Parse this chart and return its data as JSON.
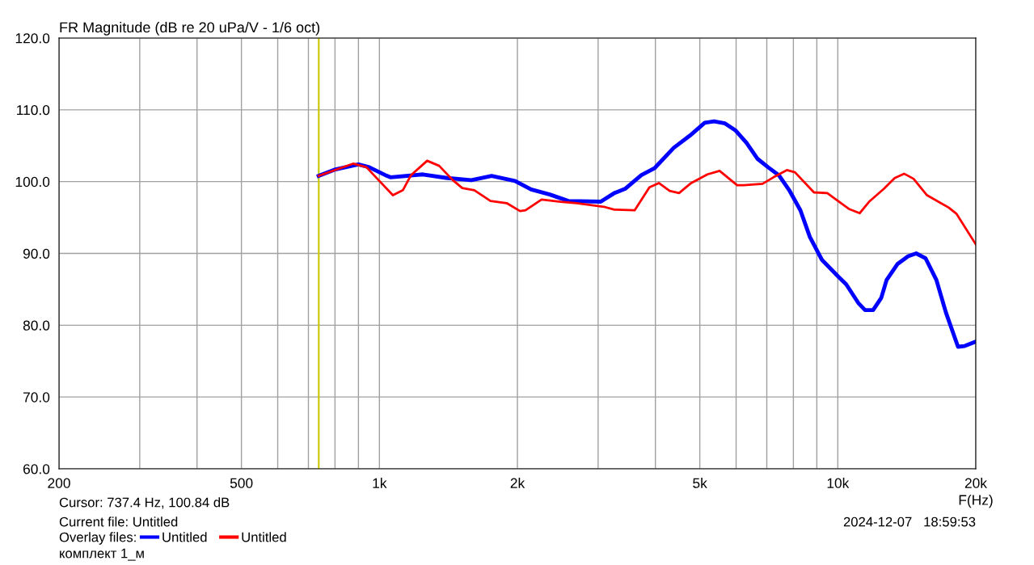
{
  "chart_data": {
    "type": "line",
    "title": "FR Magnitude (dB re 20 uPa/V - 1/6 oct)",
    "xlabel": "F(Hz)",
    "log": "x",
    "grid": true,
    "legend": "bottom left",
    "marker": "none",
    "line_style": "solid",
    "xlim": [
      200,
      20000
    ],
    "xticks": [
      {
        "value": 200,
        "label": "200"
      },
      {
        "value": 300,
        "label": null
      },
      {
        "value": 400,
        "label": null
      },
      {
        "value": 500,
        "label": "500"
      },
      {
        "value": 600,
        "label": null
      },
      {
        "value": 700,
        "label": null
      },
      {
        "value": 800,
        "label": null
      },
      {
        "value": 900,
        "label": null
      },
      {
        "value": 1000,
        "label": "1k"
      },
      {
        "value": 2000,
        "label": "2k"
      },
      {
        "value": 3000,
        "label": null
      },
      {
        "value": 4000,
        "label": null
      },
      {
        "value": 5000,
        "label": "5k"
      },
      {
        "value": 6000,
        "label": null
      },
      {
        "value": 7000,
        "label": null
      },
      {
        "value": 8000,
        "label": null
      },
      {
        "value": 9000,
        "label": null
      },
      {
        "value": 10000,
        "label": "10k"
      },
      {
        "value": 20000,
        "label": "20k"
      }
    ],
    "ylim": [
      60,
      120
    ],
    "yticks": [
      {
        "value": 60,
        "label": "60.0"
      },
      {
        "value": 70,
        "label": "70.0"
      },
      {
        "value": 80,
        "label": "80.0"
      },
      {
        "value": 90,
        "label": "90.0"
      },
      {
        "value": 100,
        "label": "100.0"
      },
      {
        "value": 110,
        "label": "110.0"
      },
      {
        "value": 120,
        "label": "120.0"
      }
    ],
    "ref_lines": [
      {
        "axis": "x",
        "value": 737.4,
        "color": "#c8c800"
      }
    ],
    "series": [
      {
        "name": "Untitled",
        "color": "#0000ff",
        "x": [
          737,
          802,
          900,
          950,
          1030,
          1057,
          1244,
          1405,
          1587,
          1757,
          1976,
          2143,
          2353,
          2583,
          3039,
          3255,
          3436,
          3728,
          3988,
          4386,
          4757,
          5125,
          5372,
          5675,
          5988,
          6320,
          6674,
          7044,
          7435,
          7852,
          8288,
          8690,
          9234,
          10014,
          10430,
          11084,
          11466,
          11940,
          12436,
          12778,
          13488,
          14236,
          14826,
          15548,
          16410,
          17208,
          18290,
          18916,
          19980
        ],
        "values": [
          100.8,
          101.7,
          102.4,
          102.0,
          100.9,
          100.6,
          101.0,
          100.5,
          100.2,
          100.8,
          100.1,
          98.9,
          98.2,
          97.3,
          97.2,
          98.4,
          99.0,
          100.9,
          101.9,
          104.7,
          106.4,
          108.2,
          108.4,
          108.1,
          107.1,
          105.4,
          103.2,
          102.0,
          100.9,
          98.7,
          96.0,
          92.3,
          89.1,
          86.8,
          85.7,
          83.1,
          82.1,
          82.1,
          83.8,
          86.3,
          88.5,
          89.6,
          90.0,
          89.3,
          86.3,
          81.8,
          77.0,
          77.1,
          77.7
        ]
      },
      {
        "name": "Untitled",
        "color": "#ff0000",
        "x": [
          737,
          876,
          937,
          996,
          1070,
          1125,
          1172,
          1271,
          1350,
          1446,
          1516,
          1611,
          1747,
          1895,
          2027,
          2083,
          2258,
          2483,
          2694,
          3086,
          3255,
          3604,
          3882,
          4070,
          4296,
          4505,
          4788,
          5194,
          5522,
          6030,
          6236,
          6854,
          7238,
          7742,
          8064,
          8870,
          9484,
          10572,
          11162,
          11704,
          12608,
          13310,
          13952,
          14628,
          15652,
          17438,
          18164,
          19980
        ],
        "values": [
          100.8,
          102.5,
          102.0,
          100.2,
          98.1,
          98.8,
          100.9,
          102.9,
          102.2,
          100.2,
          99.1,
          98.8,
          97.3,
          97.0,
          95.9,
          96.0,
          97.5,
          97.2,
          97.0,
          96.5,
          96.1,
          96.0,
          99.2,
          99.8,
          98.7,
          98.4,
          99.8,
          101.0,
          101.5,
          99.5,
          99.5,
          99.7,
          100.6,
          101.6,
          101.3,
          98.5,
          98.4,
          96.2,
          95.6,
          97.2,
          99.0,
          100.5,
          101.1,
          100.4,
          98.1,
          96.4,
          95.5,
          91.3
        ]
      }
    ],
    "annotations": [
      "Cursor: 737.4 Hz, 100.84 dB",
      "Current file: Untitled",
      "Overlay files:",
      "комплект 1_м",
      "2024-12-07   18:59:53"
    ]
  }
}
